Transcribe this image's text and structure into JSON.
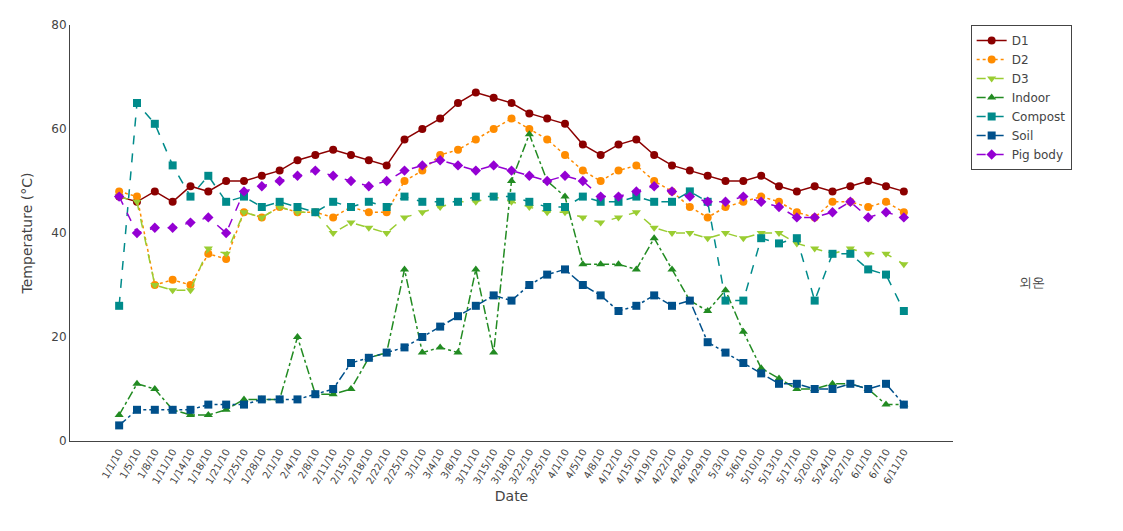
{
  "chart_data": {
    "type": "line",
    "xlabel": "Date",
    "ylabel": "Temperature (°C)",
    "categories": [
      "1/1/10",
      "1/5/10",
      "1/8/10",
      "1/11/10",
      "1/14/10",
      "1/18/10",
      "1/21/10",
      "1/25/10",
      "1/28/10",
      "2/1/10",
      "2/4/10",
      "2/8/10",
      "2/11/10",
      "2/15/10",
      "2/18/10",
      "2/22/10",
      "2/25/10",
      "3/1/10",
      "3/4/10",
      "3/8/10",
      "3/11/10",
      "3/15/10",
      "3/18/10",
      "3/22/10",
      "3/25/10",
      "4/1/10",
      "4/5/10",
      "4/8/10",
      "4/12/10",
      "4/15/10",
      "4/19/10",
      "4/22/10",
      "4/26/10",
      "4/29/10",
      "5/3/10",
      "5/6/10",
      "5/10/10",
      "5/13/10",
      "5/17/10",
      "5/20/10",
      "5/24/10",
      "5/27/10",
      "6/1/10",
      "6/7/10",
      "6/11/10"
    ],
    "series": [
      {
        "name": "D1",
        "color": "#8B0000",
        "marker": "circle",
        "line_style": "solid",
        "values": [
          47,
          46,
          48,
          46,
          49,
          48,
          50,
          50,
          51,
          52,
          54,
          55,
          56,
          55,
          54,
          53,
          58,
          60,
          62,
          65,
          67,
          66,
          65,
          63,
          62,
          61,
          57,
          55,
          57,
          58,
          55,
          53,
          52,
          51,
          50,
          50,
          51,
          49,
          48,
          49,
          48,
          49,
          50,
          49,
          48
        ]
      },
      {
        "name": "D2",
        "color": "#FF8C00",
        "marker": "circle",
        "line_style": "dotted",
        "values": [
          48,
          47,
          30,
          31,
          30,
          36,
          35,
          44,
          43,
          45,
          44,
          44,
          43,
          45,
          44,
          44,
          50,
          52,
          55,
          56,
          58,
          60,
          62,
          60,
          58,
          55,
          52,
          50,
          52,
          53,
          50,
          48,
          45,
          43,
          45,
          46,
          47,
          46,
          44,
          43,
          46,
          46,
          45,
          46,
          44
        ]
      },
      {
        "name": "D3",
        "color": "#9acd32",
        "marker": "triangle-down",
        "line_style": "dashed",
        "values": [
          47,
          46,
          30,
          29,
          29,
          37,
          36,
          44,
          43,
          45,
          44,
          44,
          40,
          42,
          41,
          40,
          43,
          44,
          45,
          46,
          46,
          47,
          46,
          45,
          44,
          44,
          43,
          42,
          43,
          44,
          41,
          40,
          40,
          39,
          40,
          39,
          40,
          40,
          38,
          37,
          36,
          37,
          36,
          36,
          34
        ]
      },
      {
        "name": "Indoor",
        "color": "#228B22",
        "marker": "triangle-up",
        "line_style": "dashdot",
        "values": [
          5,
          11,
          10,
          6,
          5,
          5,
          6,
          8,
          8,
          8,
          20,
          9,
          9,
          10,
          16,
          17,
          33,
          17,
          18,
          17,
          33,
          17,
          50,
          59,
          50,
          47,
          34,
          34,
          34,
          33,
          39,
          33,
          27,
          25,
          29,
          21,
          14,
          12,
          10,
          10,
          11,
          11,
          10,
          7,
          7
        ]
      },
      {
        "name": "Compost",
        "color": "#008B8B",
        "marker": "square",
        "line_style": "dashed",
        "values": [
          26,
          65,
          61,
          53,
          47,
          51,
          46,
          47,
          45,
          46,
          45,
          44,
          46,
          45,
          46,
          45,
          47,
          46,
          46,
          46,
          47,
          47,
          47,
          46,
          45,
          45,
          47,
          46,
          46,
          47,
          46,
          46,
          48,
          46,
          27,
          27,
          39,
          38,
          39,
          27,
          36,
          36,
          33,
          32,
          25
        ]
      },
      {
        "name": "Soil",
        "color": "#00508B",
        "marker": "square",
        "line_style": "dashdot",
        "values": [
          3,
          6,
          6,
          6,
          6,
          7,
          7,
          7,
          8,
          8,
          8,
          9,
          10,
          15,
          16,
          17,
          18,
          20,
          22,
          24,
          26,
          28,
          27,
          30,
          32,
          33,
          30,
          28,
          25,
          26,
          28,
          26,
          27,
          19,
          17,
          15,
          13,
          11,
          11,
          10,
          10,
          11,
          10,
          11,
          7
        ]
      },
      {
        "name": "Pig body",
        "color": "#9400D3",
        "marker": "diamond",
        "line_style": "dashed",
        "values": [
          47,
          40,
          41,
          41,
          42,
          43,
          40,
          48,
          49,
          50,
          51,
          52,
          51,
          50,
          49,
          50,
          52,
          53,
          54,
          53,
          52,
          53,
          52,
          51,
          50,
          51,
          50,
          47,
          47,
          48,
          49,
          48,
          47,
          46,
          46,
          47,
          46,
          45,
          43,
          43,
          44,
          46,
          43,
          44,
          43
        ]
      }
    ],
    "ylim": [
      0,
      80
    ],
    "yticks": [
      0,
      20,
      40,
      60,
      80
    ],
    "grid": false,
    "legend": "right",
    "annotations": [
      "외온"
    ]
  }
}
